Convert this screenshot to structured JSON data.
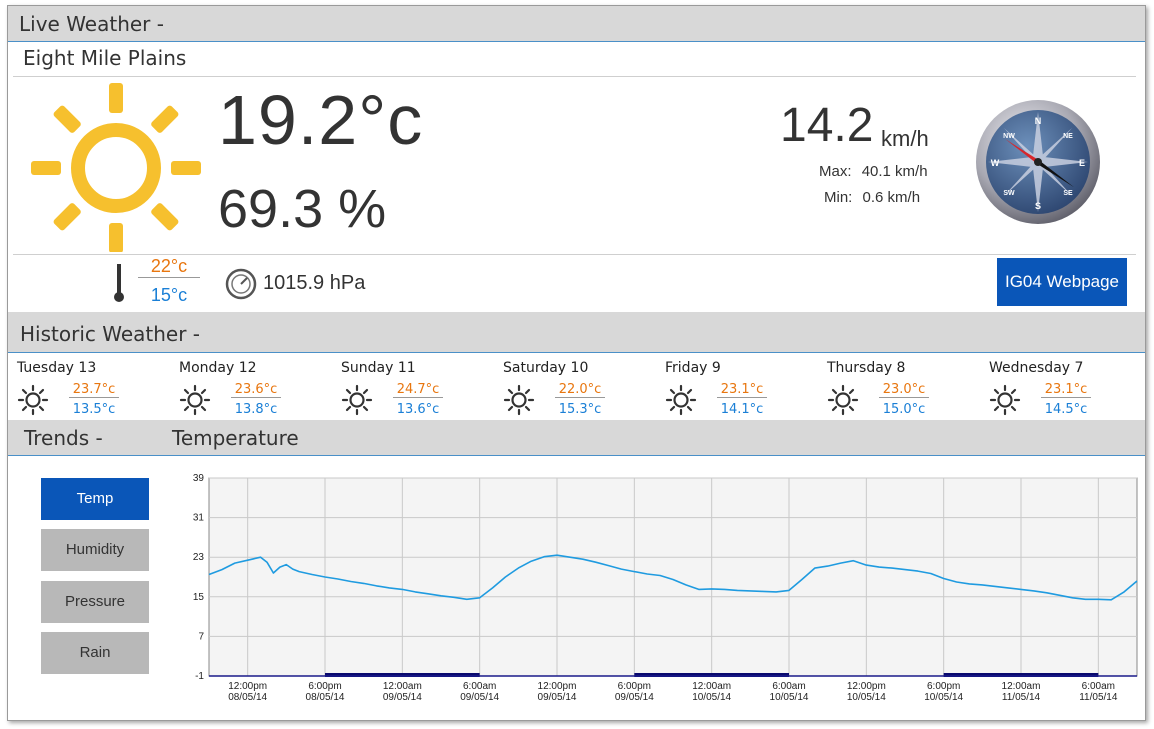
{
  "live": {
    "header": "Live Weather -",
    "location": "Eight Mile Plains",
    "temperature": "19.2°c",
    "humidity": "69.3 %",
    "wind_speed": "14.2",
    "wind_unit": "km/h",
    "wind_max_label": "Max:",
    "wind_max": "40.1 km/h",
    "wind_min_label": "Min:",
    "wind_min": "0.6 km/h",
    "temp_high": "22°c",
    "temp_low": "15°c",
    "pressure": "1015.9 hPa",
    "webpage_button": "IG04 Webpage",
    "compass_letters": {
      "n": "N",
      "ne": "NE",
      "e": "E",
      "se": "SE",
      "s": "S",
      "sw": "SW",
      "w": "W",
      "nw": "NW"
    },
    "wind_direction_deg": 125
  },
  "historic": {
    "header": "Historic Weather -",
    "days": [
      {
        "name": "Tuesday 13",
        "high": "23.7°c",
        "low": "13.5°c"
      },
      {
        "name": "Monday 12",
        "high": "23.6°c",
        "low": "13.8°c"
      },
      {
        "name": "Sunday 11",
        "high": "24.7°c",
        "low": "13.6°c"
      },
      {
        "name": "Saturday 10",
        "high": "22.0°c",
        "low": "15.3°c"
      },
      {
        "name": "Friday 9",
        "high": "23.1°c",
        "low": "14.1°c"
      },
      {
        "name": "Thursday 8",
        "high": "23.0°c",
        "low": "15.0°c"
      },
      {
        "name": "Wednesday 7",
        "high": "23.1°c",
        "low": "14.5°c"
      }
    ]
  },
  "trends": {
    "header": "Trends -",
    "chart_title": "Temperature",
    "buttons": [
      "Temp",
      "Humidity",
      "Pressure",
      "Rain"
    ],
    "active": "Temp"
  },
  "colors": {
    "accent": "#0a56b8",
    "line": "#1f9be0",
    "orange": "#e8760f",
    "blue": "#1a7fd6",
    "sun": "#f6c02e"
  },
  "chart_data": {
    "type": "line",
    "title": "Temperature",
    "xlabel": "",
    "ylabel": "",
    "ylim": [
      -1,
      39
    ],
    "yticks": [
      -1,
      7,
      15,
      23,
      31,
      39
    ],
    "grid": true,
    "xticks": [
      {
        "t": 9,
        "label": [
          "12:00pm",
          "08/05/14"
        ]
      },
      {
        "t": 15,
        "label": [
          "6:00pm",
          "08/05/14"
        ]
      },
      {
        "t": 21,
        "label": [
          "12:00am",
          "09/05/14"
        ]
      },
      {
        "t": 27,
        "label": [
          "6:00am",
          "09/05/14"
        ]
      },
      {
        "t": 33,
        "label": [
          "12:00pm",
          "09/05/14"
        ]
      },
      {
        "t": 39,
        "label": [
          "6:00pm",
          "09/05/14"
        ]
      },
      {
        "t": 45,
        "label": [
          "12:00am",
          "10/05/14"
        ]
      },
      {
        "t": 51,
        "label": [
          "6:00am",
          "10/05/14"
        ]
      },
      {
        "t": 57,
        "label": [
          "12:00pm",
          "10/05/14"
        ]
      },
      {
        "t": 63,
        "label": [
          "6:00pm",
          "10/05/14"
        ]
      },
      {
        "t": 69,
        "label": [
          "12:00am",
          "11/05/14"
        ]
      },
      {
        "t": 75,
        "label": [
          "6:00am",
          "11/05/14"
        ]
      }
    ],
    "xlim": [
      6,
      78
    ],
    "series": [
      {
        "x": [
          6,
          7,
          8,
          9,
          10,
          10.5,
          11,
          11.5,
          12,
          12.5,
          13,
          14,
          15,
          16,
          17,
          18,
          19,
          20,
          21,
          22,
          23,
          24,
          25,
          26,
          27,
          28,
          29,
          30,
          31,
          32,
          33,
          34,
          35,
          36,
          37,
          38,
          39,
          40,
          41,
          42,
          43,
          44,
          45,
          46,
          47,
          48,
          49,
          50,
          51,
          52,
          53,
          54,
          55,
          56,
          57,
          58,
          59,
          60,
          61,
          62,
          63,
          64,
          65,
          66,
          67,
          68,
          69,
          70,
          71,
          72,
          73,
          74,
          75,
          76,
          77,
          78
        ],
        "y": [
          19.5,
          20.5,
          21.8,
          22.4,
          23.0,
          22.0,
          19.8,
          21.0,
          21.5,
          20.6,
          20.1,
          19.5,
          19.0,
          18.6,
          18.1,
          17.7,
          17.2,
          16.8,
          16.5,
          16.0,
          15.6,
          15.2,
          14.9,
          14.5,
          14.8,
          16.8,
          19.0,
          20.8,
          22.2,
          23.1,
          23.4,
          23.0,
          22.6,
          22.0,
          21.3,
          20.6,
          20.1,
          19.6,
          19.3,
          18.5,
          17.4,
          16.5,
          16.6,
          16.5,
          16.3,
          16.2,
          16.1,
          16.0,
          16.3,
          18.5,
          20.8,
          21.2,
          21.8,
          22.3,
          21.4,
          21.0,
          20.8,
          20.5,
          20.2,
          19.7,
          18.7,
          18.0,
          17.6,
          17.4,
          17.1,
          16.8,
          16.5,
          16.2,
          15.8,
          15.3,
          14.8,
          14.5,
          14.5,
          14.4,
          16.0,
          18.2
        ]
      }
    ]
  }
}
